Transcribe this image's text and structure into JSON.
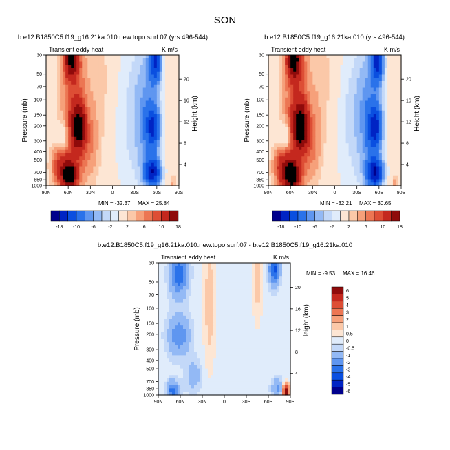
{
  "figure": {
    "title": "SON",
    "colors": {
      "abs_scale": [
        "#00008c",
        "#0024c4",
        "#0a4fe0",
        "#2a72ea",
        "#5f96f0",
        "#93b9f5",
        "#c3d8f8",
        "#e0ecfb",
        "#fde6d4",
        "#fbc8a8",
        "#f6a07a",
        "#ec7653",
        "#dd4e35",
        "#c4281e",
        "#8f0b0b"
      ],
      "diff_scale": [
        "#00008c",
        "#0024c4",
        "#0a4fe0",
        "#2a72ea",
        "#5f96f0",
        "#93b9f5",
        "#c3d8f8",
        "#e0ecfb",
        "#fde6d4",
        "#fbc8a8",
        "#f6a07a",
        "#ec7653",
        "#dd4e35",
        "#c4281e",
        "#8f0b0b"
      ]
    }
  },
  "chart_data": [
    {
      "type": "heatmap",
      "title": "b.e12.B1850C5.f19_g16.21ka.010.new.topo.surf.07 (yrs 496-544)",
      "left_string": "Transient eddy heat",
      "right_string": "K m/s",
      "xlabel": "",
      "ylabel": "Pressure (mb)",
      "ylabel_right": "Height (km)",
      "x_ticks": [
        "90N",
        "60N",
        "30N",
        "0",
        "30S",
        "60S",
        "90S"
      ],
      "y_ticks": [
        "30",
        "50",
        "70",
        "100",
        "150",
        "200",
        "300",
        "400",
        "500",
        "700",
        "850",
        "1000"
      ],
      "height_ticks": [
        "4",
        "8",
        "12",
        "16",
        "20"
      ],
      "x_range": [
        90,
        -90
      ],
      "y_range": [
        1000,
        30
      ],
      "min_label": "MIN = -32.37",
      "max_label": "MAX = 25.84",
      "min": -32.37,
      "max": 25.84,
      "colorbar": {
        "orientation": "horizontal",
        "labels": [
          "-18",
          "-10",
          "-6",
          "-2",
          "2",
          "6",
          "10",
          "18"
        ],
        "levels": [
          -22,
          -18,
          -14,
          -10,
          -8,
          -6,
          -4,
          -2,
          2,
          4,
          6,
          8,
          10,
          14,
          18,
          22
        ]
      }
    },
    {
      "type": "heatmap",
      "title": "b.e12.B1850C5.f19_g16.21ka.010 (yrs 496-544)",
      "left_string": "Transient eddy heat",
      "right_string": "K m/s",
      "xlabel": "",
      "ylabel": "Pressure (mb)",
      "ylabel_right": "Height (km)",
      "x_ticks": [
        "90N",
        "60N",
        "30N",
        "0",
        "30S",
        "60S",
        "90S"
      ],
      "y_ticks": [
        "30",
        "50",
        "70",
        "100",
        "150",
        "200",
        "300",
        "400",
        "500",
        "700",
        "850",
        "1000"
      ],
      "height_ticks": [
        "4",
        "8",
        "12",
        "16",
        "20"
      ],
      "x_range": [
        90,
        -90
      ],
      "y_range": [
        1000,
        30
      ],
      "min_label": "MIN = -32.21",
      "max_label": "MAX = 30.65",
      "min": -32.21,
      "max": 30.65,
      "colorbar": {
        "orientation": "horizontal",
        "labels": [
          "-18",
          "-10",
          "-6",
          "-2",
          "2",
          "6",
          "10",
          "18"
        ],
        "levels": [
          -22,
          -18,
          -14,
          -10,
          -8,
          -6,
          -4,
          -2,
          2,
          4,
          6,
          8,
          10,
          14,
          18,
          22
        ]
      }
    },
    {
      "type": "heatmap",
      "title": "b.e12.B1850C5.f19_g16.21ka.010.new.topo.surf.07 - b.e12.B1850C5.f19_g16.21ka.010",
      "left_string": "Transient eddy heat",
      "right_string": "K m/s",
      "xlabel": "",
      "ylabel": "Pressure (mb)",
      "ylabel_right": "Height (km)",
      "x_ticks": [
        "90N",
        "60N",
        "30N",
        "0",
        "30S",
        "60S",
        "90S"
      ],
      "y_ticks": [
        "30",
        "50",
        "70",
        "100",
        "150",
        "200",
        "300",
        "400",
        "500",
        "700",
        "850",
        "1000"
      ],
      "height_ticks": [
        "4",
        "8",
        "12",
        "16",
        "20"
      ],
      "x_range": [
        90,
        -90
      ],
      "y_range": [
        1000,
        30
      ],
      "min_label": "MIN = -9.53",
      "max_label": "MAX = 16.46",
      "min": -9.53,
      "max": 16.46,
      "colorbar": {
        "orientation": "vertical",
        "labels": [
          "6",
          "5",
          "4",
          "3",
          "2",
          "1",
          "0.5",
          "0",
          "-0.5",
          "-1",
          "-2",
          "-3",
          "-4",
          "-5",
          "-6"
        ],
        "levels": [
          -6,
          -5,
          -4,
          -3,
          -2,
          -1,
          -0.5,
          0,
          0.5,
          1,
          2,
          3,
          4,
          5,
          6
        ]
      }
    }
  ]
}
